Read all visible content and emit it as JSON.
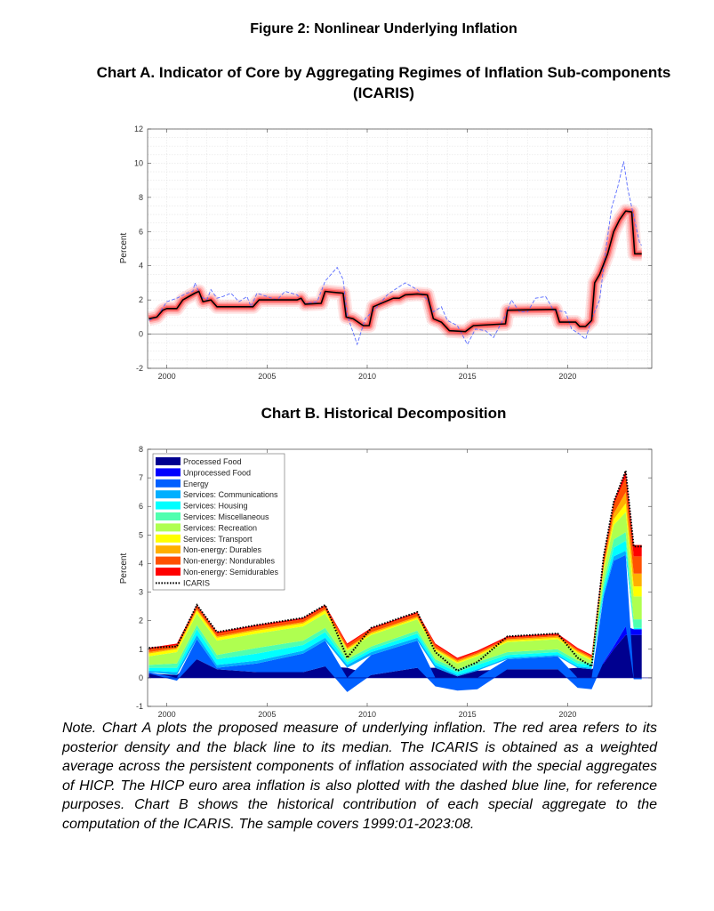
{
  "figure_title": "Figure 2: Nonlinear Underlying Inflation",
  "note": "Note. Chart A plots the proposed measure of underlying inflation. The red area refers to its posterior density and the black line to its median. The ICARIS is obtained as a weighted average across the persistent components of inflation associated with the special aggregates of HICP. The HICP euro area inflation is also plotted with the dashed blue line, for reference purposes. Chart B shows the historical contribution of each special aggregate to the computation of the ICARIS. The sample covers 1999:01-2023:08.",
  "chart_data": [
    {
      "type": "line",
      "title_line1": "Chart A. Indicator of Core by Aggregating Regimes of Inflation Sub-components",
      "title_line2": "(ICARIS)",
      "ylabel": "Percent",
      "xlim": [
        1999.04,
        2024.2
      ],
      "ylim": [
        -2,
        12
      ],
      "xticks": [
        "2000",
        "2005",
        "2010",
        "2015",
        "2020"
      ],
      "yticks": [
        "-2",
        "0",
        "2",
        "4",
        "6",
        "8",
        "10",
        "12"
      ],
      "grid": true,
      "colors": {
        "median": "#000000",
        "density": "#ff2020",
        "hicp": "#5a6cff"
      },
      "series": [
        {
          "id": "icaris_median",
          "style": "solid black with red posterior density band",
          "x": [
            1999.1,
            1999.5,
            1999.8,
            2000.0,
            2000.5,
            2000.8,
            2001.4,
            2001.6,
            2001.8,
            2002.2,
            2002.5,
            2003.0,
            2004.3,
            2004.6,
            2005.0,
            2006.5,
            2006.7,
            2006.9,
            2007.7,
            2007.9,
            2008.3,
            2008.8,
            2008.95,
            2009.3,
            2009.8,
            2010.1,
            2010.3,
            2011.3,
            2011.6,
            2011.9,
            2012.5,
            2013.0,
            2013.3,
            2013.7,
            2014.1,
            2014.9,
            2015.3,
            2016.9,
            2017.0,
            2019.4,
            2019.6,
            2020.4,
            2020.6,
            2020.9,
            2021.2,
            2021.35,
            2021.6,
            2022.0,
            2022.3,
            2022.6,
            2022.9,
            2023.2,
            2023.35,
            2023.7
          ],
          "y": [
            0.9,
            1.0,
            1.4,
            1.5,
            1.5,
            2.0,
            2.4,
            2.5,
            1.9,
            2.0,
            1.6,
            1.6,
            1.6,
            2.0,
            2.0,
            2.0,
            2.1,
            1.75,
            1.8,
            2.5,
            2.45,
            2.4,
            1.0,
            0.9,
            0.5,
            0.5,
            1.6,
            2.1,
            2.1,
            2.3,
            2.35,
            2.3,
            0.9,
            0.7,
            0.2,
            0.15,
            0.5,
            0.6,
            1.4,
            1.45,
            0.7,
            0.7,
            0.45,
            0.45,
            0.8,
            3.0,
            3.5,
            4.7,
            6.0,
            6.7,
            7.2,
            7.15,
            4.7,
            4.7
          ]
        },
        {
          "id": "hicp",
          "style": "dashed blue",
          "x": [
            1999.1,
            1999.5,
            2000.0,
            2000.5,
            2001.0,
            2001.3,
            2001.4,
            2001.7,
            2002.0,
            2002.2,
            2002.5,
            2002.8,
            2003.2,
            2003.6,
            2004.0,
            2004.2,
            2004.5,
            2005.0,
            2005.5,
            2005.9,
            2006.5,
            2006.9,
            2007.5,
            2007.9,
            2008.5,
            2008.8,
            2009.0,
            2009.5,
            2009.9,
            2010.5,
            2011.0,
            2011.5,
            2011.9,
            2012.5,
            2013.0,
            2013.3,
            2013.7,
            2014.0,
            2014.5,
            2015.0,
            2015.4,
            2015.9,
            2016.3,
            2016.9,
            2017.2,
            2017.6,
            2018.0,
            2018.4,
            2018.9,
            2019.3,
            2019.9,
            2020.2,
            2020.6,
            2020.9,
            2021.2,
            2021.6,
            2021.9,
            2022.2,
            2022.5,
            2022.8,
            2023.0,
            2023.3,
            2023.6,
            2023.7
          ],
          "y": [
            0.8,
            1.0,
            1.9,
            2.1,
            2.4,
            2.5,
            3.0,
            2.2,
            2.0,
            2.6,
            2.1,
            2.2,
            2.4,
            1.9,
            2.2,
            1.6,
            2.4,
            2.2,
            2.0,
            2.5,
            2.3,
            1.8,
            1.9,
            3.1,
            3.9,
            3.2,
            1.1,
            -0.6,
            0.9,
            1.6,
            2.3,
            2.7,
            3.0,
            2.6,
            2.0,
            1.3,
            1.6,
            0.8,
            0.5,
            -0.6,
            0.3,
            0.2,
            -0.2,
            1.1,
            2.0,
            1.3,
            1.3,
            2.1,
            2.2,
            1.4,
            1.3,
            0.3,
            0.0,
            -0.3,
            0.9,
            2.0,
            4.9,
            7.4,
            8.6,
            10.1,
            8.5,
            6.9,
            5.3,
            5.2
          ]
        }
      ]
    },
    {
      "type": "area",
      "stacked": true,
      "title": "Chart B. Historical Decomposition",
      "ylabel": "Percent",
      "xlim": [
        1999.04,
        2024.2
      ],
      "ylim": [
        -1,
        8
      ],
      "xticks": [
        "2000",
        "2005",
        "2010",
        "2015",
        "2020"
      ],
      "yticks": [
        "-1",
        "0",
        "1",
        "2",
        "3",
        "4",
        "5",
        "6",
        "7",
        "8"
      ],
      "legend_position": "top-left",
      "x": [
        1999.1,
        2000.5,
        2001.5,
        2002.5,
        2004.5,
        2006.8,
        2007.9,
        2009.0,
        2010.2,
        2012.5,
        2013.4,
        2014.5,
        2015.5,
        2017.0,
        2019.5,
        2020.5,
        2021.2,
        2021.8,
        2022.3,
        2022.9,
        2023.3,
        2023.7
      ],
      "series": [
        {
          "name": "Processed Food",
          "color": "#00008f",
          "values": [
            0.15,
            0.1,
            0.65,
            0.3,
            0.2,
            0.2,
            0.4,
            0.35,
            0.1,
            0.35,
            0.35,
            0.05,
            0.25,
            0.3,
            0.3,
            0.35,
            0.3,
            0.5,
            1.0,
            1.5,
            1.5,
            1.5
          ]
        },
        {
          "name": "Unprocessed Food",
          "color": "#0000ff",
          "values": [
            0,
            0,
            0,
            0,
            0,
            0,
            0,
            0,
            0,
            0,
            0,
            0,
            0,
            0,
            0,
            0,
            0,
            0.05,
            0.1,
            0.3,
            0.2,
            0.2
          ]
        },
        {
          "name": "Energy",
          "color": "#0060ff",
          "values": [
            0.05,
            -0.1,
            0.7,
            0.05,
            0.3,
            0.65,
            0.9,
            -0.5,
            0.7,
            0.95,
            -0.3,
            -0.45,
            -0.4,
            0.35,
            0.45,
            -0.35,
            -0.4,
            2.3,
            3.0,
            2.5,
            -0.05,
            -0.05
          ]
        },
        {
          "name": "Services: Communications",
          "color": "#00afff",
          "values": [
            0.05,
            0.1,
            0.15,
            0.1,
            0.1,
            0.1,
            0.1,
            0.1,
            0.1,
            0.1,
            0.1,
            0.05,
            0.05,
            0.05,
            0.05,
            0.05,
            0.05,
            0.1,
            0.15,
            0.15,
            0,
            0
          ]
        },
        {
          "name": "Services: Housing",
          "color": "#00ffff",
          "values": [
            0.1,
            0.15,
            0.2,
            0.2,
            0.25,
            0.2,
            0.2,
            0.1,
            0.1,
            0.15,
            0.1,
            0.1,
            0.15,
            0.1,
            0.1,
            0.1,
            0.1,
            0.2,
            0.3,
            0.35,
            0.05,
            0.05
          ]
        },
        {
          "name": "Services: Miscellaneous",
          "color": "#50ffaf",
          "values": [
            0.1,
            0.15,
            0.15,
            0.15,
            0.2,
            0.15,
            0.15,
            0.1,
            0.1,
            0.1,
            0.1,
            0.1,
            0.1,
            0.1,
            0.1,
            0.1,
            0.05,
            0.2,
            0.3,
            0.3,
            0.3,
            0.3
          ]
        },
        {
          "name": "Services: Recreation",
          "color": "#afff50",
          "values": [
            0.3,
            0.4,
            0.4,
            0.5,
            0.5,
            0.5,
            0.5,
            0.3,
            0.4,
            0.4,
            0.3,
            0.2,
            0.2,
            0.35,
            0.35,
            0.25,
            0.1,
            0.4,
            0.5,
            0.7,
            0.8,
            0.8
          ]
        },
        {
          "name": "Services: Transport",
          "color": "#ffff00",
          "values": [
            0.1,
            0.1,
            0.1,
            0.1,
            0.1,
            0.1,
            0.1,
            0.05,
            0.05,
            0.05,
            0.05,
            0.05,
            0.05,
            0.05,
            0.05,
            0.05,
            0.05,
            0.1,
            0.2,
            0.3,
            0.35,
            0.35
          ]
        },
        {
          "name": "Non-energy: Durables",
          "color": "#ffaf00",
          "values": [
            0.05,
            0.05,
            0.05,
            0.05,
            0.05,
            0.05,
            0.05,
            0.05,
            0.05,
            0.05,
            0.05,
            0.05,
            0.05,
            0.05,
            0.05,
            0.05,
            0.05,
            0.1,
            0.2,
            0.4,
            0.45,
            0.45
          ]
        },
        {
          "name": "Non-energy: Nondurables",
          "color": "#ff5000",
          "values": [
            0.1,
            0.1,
            0.1,
            0.1,
            0.1,
            0.1,
            0.1,
            0.1,
            0.1,
            0.1,
            0.1,
            0.05,
            0.05,
            0.05,
            0.05,
            0.05,
            0.05,
            0.2,
            0.3,
            0.5,
            0.6,
            0.6
          ]
        },
        {
          "name": "Non-energy: Semidurables",
          "color": "#ff0000",
          "values": [
            0.05,
            0.05,
            0.05,
            0.05,
            0.05,
            0.05,
            0.05,
            0.05,
            0.05,
            0.05,
            0.05,
            0.05,
            0.05,
            0.05,
            0.05,
            0.05,
            0.05,
            0.1,
            0.1,
            0.25,
            0.4,
            0.4
          ]
        }
      ],
      "line_series": {
        "name": "ICARIS",
        "style": "dotted black"
      }
    }
  ]
}
